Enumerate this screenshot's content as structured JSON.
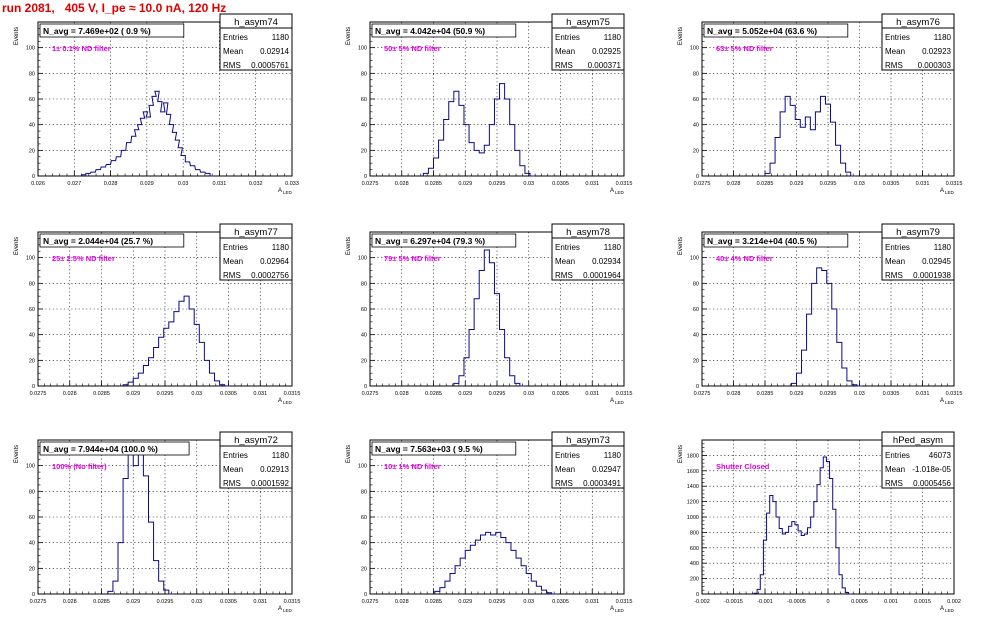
{
  "header": {
    "run_title": "run 2081,   405 V, I_pe ≈ 10.0 nA, 120 Hz"
  },
  "colors": {
    "histogram": "#0a0a8a",
    "filter_label": "#e000e0",
    "title_red": "#e00000",
    "grid": "#000000"
  },
  "stat_labels": {
    "entries": "Entries",
    "mean": "Mean",
    "rms": "RMS"
  },
  "axis_labels": {
    "y": "Events",
    "x": "A",
    "x_sub": "LED"
  },
  "chart_data": [
    {
      "type": "bar",
      "name": "h_asym74",
      "stats": {
        "entries": "1180",
        "mean": "0.02914",
        "rms": "0.0005761"
      },
      "navg_label": "N_avg = 7.469e+02 ( 0.9 %)",
      "filter_label": "1± 0.1% ND filter",
      "xlim": [
        0.026,
        0.033
      ],
      "ylim": [
        0,
        120
      ],
      "xticks": [
        "0.026",
        "0.027",
        "0.028",
        "0.029",
        "0.03",
        "0.031",
        "0.032",
        "0.033"
      ],
      "yticks": [
        "0",
        "20",
        "40",
        "60",
        "80",
        "100"
      ],
      "bins": [
        [
          0.02726,
          1
        ],
        [
          0.02738,
          2
        ],
        [
          0.02752,
          3
        ],
        [
          0.02766,
          5
        ],
        [
          0.0278,
          7
        ],
        [
          0.02794,
          9
        ],
        [
          0.02808,
          12
        ],
        [
          0.02822,
          15
        ],
        [
          0.02836,
          20
        ],
        [
          0.0285,
          26
        ],
        [
          0.02864,
          31
        ],
        [
          0.02872,
          36
        ],
        [
          0.0288,
          40
        ],
        [
          0.02888,
          45
        ],
        [
          0.02896,
          50
        ],
        [
          0.02904,
          46
        ],
        [
          0.02912,
          55
        ],
        [
          0.0292,
          62
        ],
        [
          0.02928,
          66
        ],
        [
          0.02936,
          58
        ],
        [
          0.02944,
          50
        ],
        [
          0.02952,
          57
        ],
        [
          0.0296,
          48
        ],
        [
          0.02968,
          40
        ],
        [
          0.02976,
          34
        ],
        [
          0.02984,
          28
        ],
        [
          0.02992,
          22
        ],
        [
          0.03,
          16
        ],
        [
          0.03012,
          11
        ],
        [
          0.03026,
          8
        ],
        [
          0.0304,
          5
        ],
        [
          0.03054,
          3
        ],
        [
          0.03068,
          2
        ],
        [
          0.0308,
          0
        ]
      ]
    },
    {
      "type": "bar",
      "name": "h_asym75",
      "stats": {
        "entries": "1180",
        "mean": "0.02925",
        "rms": "0.000371"
      },
      "navg_label": "N_avg = 4.042e+04 (50.9 %)",
      "filter_label": "50± 5% ND filter",
      "xlim": [
        0.0275,
        0.0315
      ],
      "ylim": [
        0,
        120
      ],
      "xticks": [
        "0.0275",
        "0.028",
        "0.0285",
        "0.029",
        "0.0295",
        "0.03",
        "0.0305",
        "0.031",
        "0.0315"
      ],
      "yticks": [
        "0",
        "20",
        "40",
        "60",
        "80",
        "100"
      ],
      "bins": [
        [
          0.02838,
          2
        ],
        [
          0.02846,
          6
        ],
        [
          0.02854,
          14
        ],
        [
          0.02862,
          28
        ],
        [
          0.0287,
          44
        ],
        [
          0.02878,
          58
        ],
        [
          0.02886,
          66
        ],
        [
          0.02894,
          55
        ],
        [
          0.02902,
          40
        ],
        [
          0.0291,
          26
        ],
        [
          0.02918,
          20
        ],
        [
          0.02926,
          18
        ],
        [
          0.02934,
          24
        ],
        [
          0.02942,
          40
        ],
        [
          0.0295,
          60
        ],
        [
          0.02958,
          72
        ],
        [
          0.02966,
          60
        ],
        [
          0.02974,
          40
        ],
        [
          0.02982,
          20
        ],
        [
          0.0299,
          8
        ],
        [
          0.02998,
          2
        ],
        [
          0.03006,
          0
        ]
      ]
    },
    {
      "type": "bar",
      "name": "h_asym76",
      "stats": {
        "entries": "1180",
        "mean": "0.02923",
        "rms": "0.000303"
      },
      "navg_label": "N_avg = 5.052e+04 (63.6 %)",
      "filter_label": "63± 5% ND filter",
      "xlim": [
        0.0275,
        0.0315
      ],
      "ylim": [
        0,
        120
      ],
      "xticks": [
        "0.0275",
        "0.028",
        "0.0285",
        "0.029",
        "0.0295",
        "0.03",
        "0.0305",
        "0.031",
        "0.0315"
      ],
      "yticks": [
        "0",
        "20",
        "40",
        "60",
        "80",
        "100"
      ],
      "bins": [
        [
          0.02854,
          2
        ],
        [
          0.02862,
          10
        ],
        [
          0.0287,
          30
        ],
        [
          0.02878,
          50
        ],
        [
          0.02886,
          62
        ],
        [
          0.02894,
          55
        ],
        [
          0.02902,
          44
        ],
        [
          0.0291,
          38
        ],
        [
          0.02918,
          46
        ],
        [
          0.02926,
          36
        ],
        [
          0.02934,
          50
        ],
        [
          0.02942,
          62
        ],
        [
          0.0295,
          56
        ],
        [
          0.02958,
          42
        ],
        [
          0.02966,
          24
        ],
        [
          0.02974,
          10
        ],
        [
          0.02982,
          3
        ],
        [
          0.0299,
          0
        ]
      ]
    },
    {
      "type": "bar",
      "name": "h_asym77",
      "stats": {
        "entries": "1180",
        "mean": "0.02964",
        "rms": "0.0002756"
      },
      "navg_label": "N_avg = 2.044e+04 (25.7 %)",
      "filter_label": "25± 2.5% ND filter",
      "xlim": [
        0.0275,
        0.0315
      ],
      "ylim": [
        0,
        120
      ],
      "xticks": [
        "0.0275",
        "0.028",
        "0.0285",
        "0.029",
        "0.0295",
        "0.03",
        "0.0305",
        "0.031",
        "0.0315"
      ],
      "yticks": [
        "0",
        "20",
        "40",
        "60",
        "80",
        "100"
      ],
      "bins": [
        [
          0.02888,
          1
        ],
        [
          0.02896,
          3
        ],
        [
          0.02904,
          6
        ],
        [
          0.02912,
          10
        ],
        [
          0.0292,
          16
        ],
        [
          0.02928,
          22
        ],
        [
          0.02936,
          30
        ],
        [
          0.02944,
          38
        ],
        [
          0.02952,
          45
        ],
        [
          0.0296,
          50
        ],
        [
          0.02968,
          58
        ],
        [
          0.02976,
          66
        ],
        [
          0.02984,
          70
        ],
        [
          0.02992,
          60
        ],
        [
          0.03,
          48
        ],
        [
          0.03008,
          34
        ],
        [
          0.03016,
          20
        ],
        [
          0.03024,
          10
        ],
        [
          0.03032,
          4
        ],
        [
          0.0304,
          1
        ],
        [
          0.03048,
          0
        ]
      ]
    },
    {
      "type": "bar",
      "name": "h_asym78",
      "stats": {
        "entries": "1180",
        "mean": "0.02934",
        "rms": "0.0001964"
      },
      "navg_label": "N_avg = 6.297e+04 (79.3 %)",
      "filter_label": "79± 5% ND filter",
      "xlim": [
        0.0275,
        0.0315
      ],
      "ylim": [
        0,
        120
      ],
      "xticks": [
        "0.0275",
        "0.028",
        "0.0285",
        "0.029",
        "0.0295",
        "0.03",
        "0.0305",
        "0.031",
        "0.0315"
      ],
      "yticks": [
        "0",
        "20",
        "40",
        "60",
        "80",
        "100"
      ],
      "bins": [
        [
          0.02886,
          2
        ],
        [
          0.02894,
          8
        ],
        [
          0.02902,
          22
        ],
        [
          0.0291,
          44
        ],
        [
          0.02918,
          68
        ],
        [
          0.02926,
          90
        ],
        [
          0.02934,
          106
        ],
        [
          0.02942,
          96
        ],
        [
          0.0295,
          72
        ],
        [
          0.02958,
          44
        ],
        [
          0.02966,
          22
        ],
        [
          0.02974,
          8
        ],
        [
          0.02982,
          2
        ],
        [
          0.0299,
          0
        ]
      ]
    },
    {
      "type": "bar",
      "name": "h_asym79",
      "stats": {
        "entries": "1180",
        "mean": "0.02945",
        "rms": "0.0001938"
      },
      "navg_label": "N_avg = 3.214e+04 (40.5 %)",
      "filter_label": "40± 4% ND filter",
      "xlim": [
        0.0275,
        0.0315
      ],
      "ylim": [
        0,
        120
      ],
      "xticks": [
        "0.0275",
        "0.028",
        "0.0285",
        "0.029",
        "0.0295",
        "0.03",
        "0.0305",
        "0.031",
        "0.0315"
      ],
      "yticks": [
        "0",
        "20",
        "40",
        "60",
        "80",
        "100"
      ],
      "bins": [
        [
          0.02896,
          2
        ],
        [
          0.02904,
          10
        ],
        [
          0.02912,
          28
        ],
        [
          0.0292,
          56
        ],
        [
          0.02928,
          80
        ],
        [
          0.02936,
          92
        ],
        [
          0.02944,
          90
        ],
        [
          0.02952,
          80
        ],
        [
          0.0296,
          60
        ],
        [
          0.02968,
          34
        ],
        [
          0.02976,
          14
        ],
        [
          0.02984,
          4
        ],
        [
          0.02992,
          1
        ],
        [
          0.03,
          0
        ]
      ]
    },
    {
      "type": "bar",
      "name": "h_asym72",
      "stats": {
        "entries": "1180",
        "mean": "0.02913",
        "rms": "0.0001592"
      },
      "navg_label": "N_avg = 7.944e+04 (100.0 %)",
      "filter_label": "100% (No filter)",
      "xlim": [
        0.0275,
        0.0315
      ],
      "ylim": [
        0,
        120
      ],
      "xticks": [
        "0.0275",
        "0.028",
        "0.0285",
        "0.029",
        "0.0295",
        "0.03",
        "0.0305",
        "0.031",
        "0.0315"
      ],
      "yticks": [
        "0",
        "20",
        "40",
        "60",
        "80",
        "100"
      ],
      "bins": [
        [
          0.02864,
          2
        ],
        [
          0.02872,
          10
        ],
        [
          0.0288,
          40
        ],
        [
          0.02888,
          90
        ],
        [
          0.02896,
          110
        ],
        [
          0.02904,
          100
        ],
        [
          0.02912,
          110
        ],
        [
          0.0292,
          92
        ],
        [
          0.02928,
          56
        ],
        [
          0.02936,
          26
        ],
        [
          0.02944,
          10
        ],
        [
          0.02952,
          3
        ],
        [
          0.0296,
          0
        ]
      ]
    },
    {
      "type": "bar",
      "name": "h_asym73",
      "stats": {
        "entries": "1180",
        "mean": "0.02947",
        "rms": "0.0003491"
      },
      "navg_label": "N_avg = 7.563e+03 ( 9.5 %)",
      "filter_label": "10± 1% ND filter",
      "xlim": [
        0.0275,
        0.0315
      ],
      "ylim": [
        0,
        120
      ],
      "xticks": [
        "0.0275",
        "0.028",
        "0.0285",
        "0.029",
        "0.0295",
        "0.03",
        "0.0305",
        "0.031",
        "0.0315"
      ],
      "yticks": [
        "0",
        "20",
        "40",
        "60",
        "80",
        "100"
      ],
      "bins": [
        [
          0.02856,
          2
        ],
        [
          0.02864,
          5
        ],
        [
          0.02872,
          10
        ],
        [
          0.0288,
          16
        ],
        [
          0.02888,
          22
        ],
        [
          0.02896,
          28
        ],
        [
          0.02904,
          34
        ],
        [
          0.02912,
          38
        ],
        [
          0.0292,
          42
        ],
        [
          0.02928,
          46
        ],
        [
          0.02936,
          48
        ],
        [
          0.02944,
          46
        ],
        [
          0.02952,
          48
        ],
        [
          0.0296,
          44
        ],
        [
          0.02968,
          40
        ],
        [
          0.02976,
          34
        ],
        [
          0.02984,
          28
        ],
        [
          0.02992,
          22
        ],
        [
          0.03,
          16
        ],
        [
          0.03008,
          10
        ],
        [
          0.03016,
          6
        ],
        [
          0.03024,
          3
        ],
        [
          0.03032,
          1
        ],
        [
          0.0304,
          0
        ]
      ]
    },
    {
      "type": "bar",
      "name": "hPed_asym",
      "stats": {
        "entries": "46073",
        "mean": "-1.018e-05",
        "rms": "0.0005456"
      },
      "navg_label": "",
      "filter_label": "Shutter Closed",
      "xlim": [
        -0.002,
        0.002
      ],
      "ylim": [
        0,
        2000
      ],
      "xticks": [
        "-0.002",
        "-0.0015",
        "-0.001",
        "-0.0005",
        "0",
        "0.0005",
        "0.001",
        "0.0015",
        "0.002"
      ],
      "yticks": [
        "0",
        "200",
        "400",
        "600",
        "800",
        "1000",
        "1200",
        "1400",
        "1600",
        "1800"
      ],
      "bins": [
        [
          -0.00115,
          10
        ],
        [
          -0.0011,
          60
        ],
        [
          -0.00105,
          250
        ],
        [
          -0.001,
          700
        ],
        [
          -0.00095,
          1050
        ],
        [
          -0.0009,
          1280
        ],
        [
          -0.00085,
          1200
        ],
        [
          -0.0008,
          1000
        ],
        [
          -0.00075,
          850
        ],
        [
          -0.0007,
          780
        ],
        [
          -0.00065,
          800
        ],
        [
          -0.0006,
          880
        ],
        [
          -0.00055,
          940
        ],
        [
          -0.0005,
          900
        ],
        [
          -0.00045,
          820
        ],
        [
          -0.0004,
          760
        ],
        [
          -0.00035,
          780
        ],
        [
          -0.0003,
          860
        ],
        [
          -0.00025,
          1000
        ],
        [
          -0.0002,
          1200
        ],
        [
          -0.00015,
          1420
        ],
        [
          -0.0001,
          1640
        ],
        [
          -5e-05,
          1780
        ],
        [
          0,
          1720
        ],
        [
          5e-05,
          1500
        ],
        [
          0.0001,
          1100
        ],
        [
          0.00015,
          600
        ],
        [
          0.0002,
          250
        ],
        [
          0.00025,
          80
        ],
        [
          0.0003,
          20
        ],
        [
          0.00035,
          0
        ]
      ]
    }
  ]
}
